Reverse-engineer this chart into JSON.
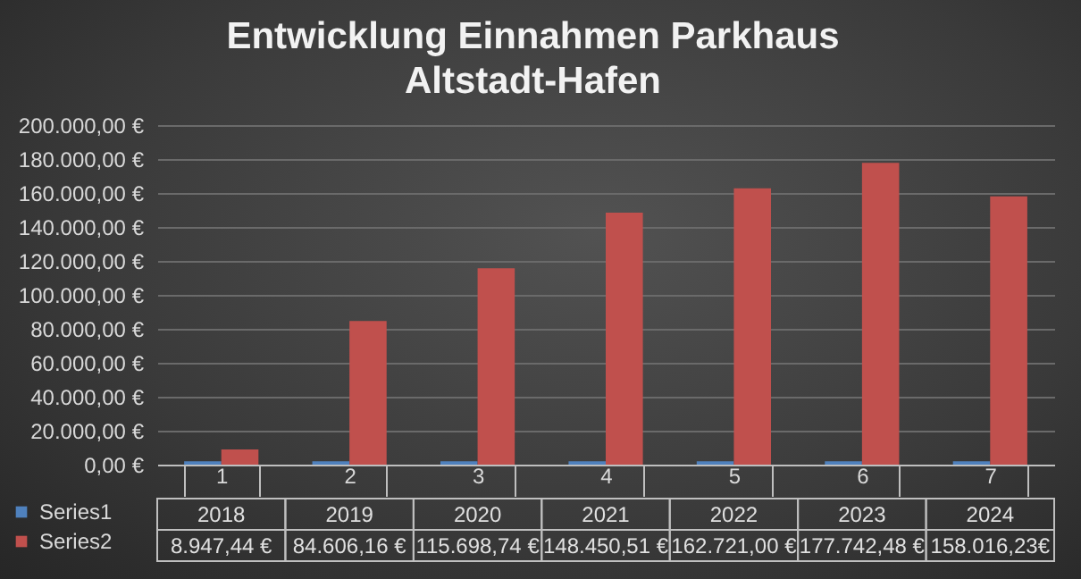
{
  "chart_data": {
    "type": "bar",
    "title": "Entwicklung Einnahmen Parkhaus\nAltstadt-Hafen",
    "categories": [
      "1",
      "2",
      "3",
      "4",
      "5",
      "6",
      "7"
    ],
    "series": [
      {
        "name": "Series1",
        "color": "#4f81bd",
        "values": [
          2018,
          2019,
          2020,
          2021,
          2022,
          2023,
          2024
        ],
        "value_labels": [
          "2018",
          "2019",
          "2020",
          "2021",
          "2022",
          "2023",
          "2024"
        ]
      },
      {
        "name": "Series2",
        "color": "#c0504d",
        "values": [
          8947.44,
          84606.16,
          115698.74,
          148450.51,
          162721.0,
          177742.48,
          158016.23
        ],
        "value_labels": [
          "8.947,44 €",
          "84.606,16 €",
          "115.698,74 €",
          "148.450,51 €",
          "162.721,00 €",
          "177.742,48 €",
          "158.016,23€"
        ]
      }
    ],
    "ylim": [
      0,
      200000
    ],
    "yticks": [
      {
        "value": 0,
        "label": "0,00 €"
      },
      {
        "value": 20000,
        "label": "20.000,00 €"
      },
      {
        "value": 40000,
        "label": "40.000,00 €"
      },
      {
        "value": 60000,
        "label": "60.000,00 €"
      },
      {
        "value": 80000,
        "label": "80.000,00 €"
      },
      {
        "value": 100000,
        "label": "100.000,00 €"
      },
      {
        "value": 120000,
        "label": "120.000,00 €"
      },
      {
        "value": 140000,
        "label": "140.000,00 €"
      },
      {
        "value": 160000,
        "label": "160.000,00 €"
      },
      {
        "value": 180000,
        "label": "180.000,00 €"
      },
      {
        "value": 200000,
        "label": "200.000,00 €"
      }
    ],
    "grid": true,
    "legend": "bottom"
  }
}
